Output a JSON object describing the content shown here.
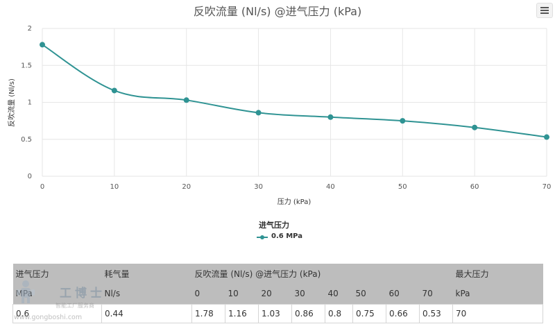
{
  "chart": {
    "title": "反吹流量 (Nl/s) @进气压力 (kPa)",
    "menu_icon": "hamburger-menu-icon"
  },
  "chart_data": {
    "type": "line",
    "title": "反吹流量 (Nl/s) @进气压力 (kPa)",
    "xlabel": "压力 (kPa)",
    "ylabel": "反吹流量 (Nl/s)",
    "x": [
      0,
      10,
      20,
      30,
      40,
      50,
      60,
      70
    ],
    "xlim": [
      0,
      70
    ],
    "ylim": [
      0,
      2
    ],
    "x_ticks": [
      "0",
      "10",
      "20",
      "30",
      "40",
      "50",
      "60",
      "70"
    ],
    "y_ticks": [
      "0",
      "0.5",
      "1",
      "1.5",
      "2"
    ],
    "grid": true,
    "legend_position": "bottom",
    "legend_title": "进气压力",
    "series": [
      {
        "name": "0.6 MPa",
        "color": "#2f9393",
        "values": [
          1.78,
          1.16,
          1.03,
          0.86,
          0.8,
          0.75,
          0.66,
          0.53
        ]
      }
    ]
  },
  "table": {
    "header_row1": [
      "进气压力",
      "耗气量",
      "反吹流量 (Nl/s) @进气压力 (kPa)",
      "最大压力"
    ],
    "header_row2": [
      "MPa",
      "Nl/s",
      "0",
      "10",
      "20",
      "30",
      "40",
      "50",
      "60",
      "70",
      "kPa"
    ],
    "rows": [
      [
        "0.6",
        "0.44",
        "1.78",
        "1.16",
        "1.03",
        "0.86",
        "0.8",
        "0.75",
        "0.66",
        "0.53",
        "70"
      ]
    ]
  },
  "watermark": {
    "brand": "工博士",
    "subtitle": "智能工厂服务商",
    "url": "www.gongboshi.com"
  }
}
